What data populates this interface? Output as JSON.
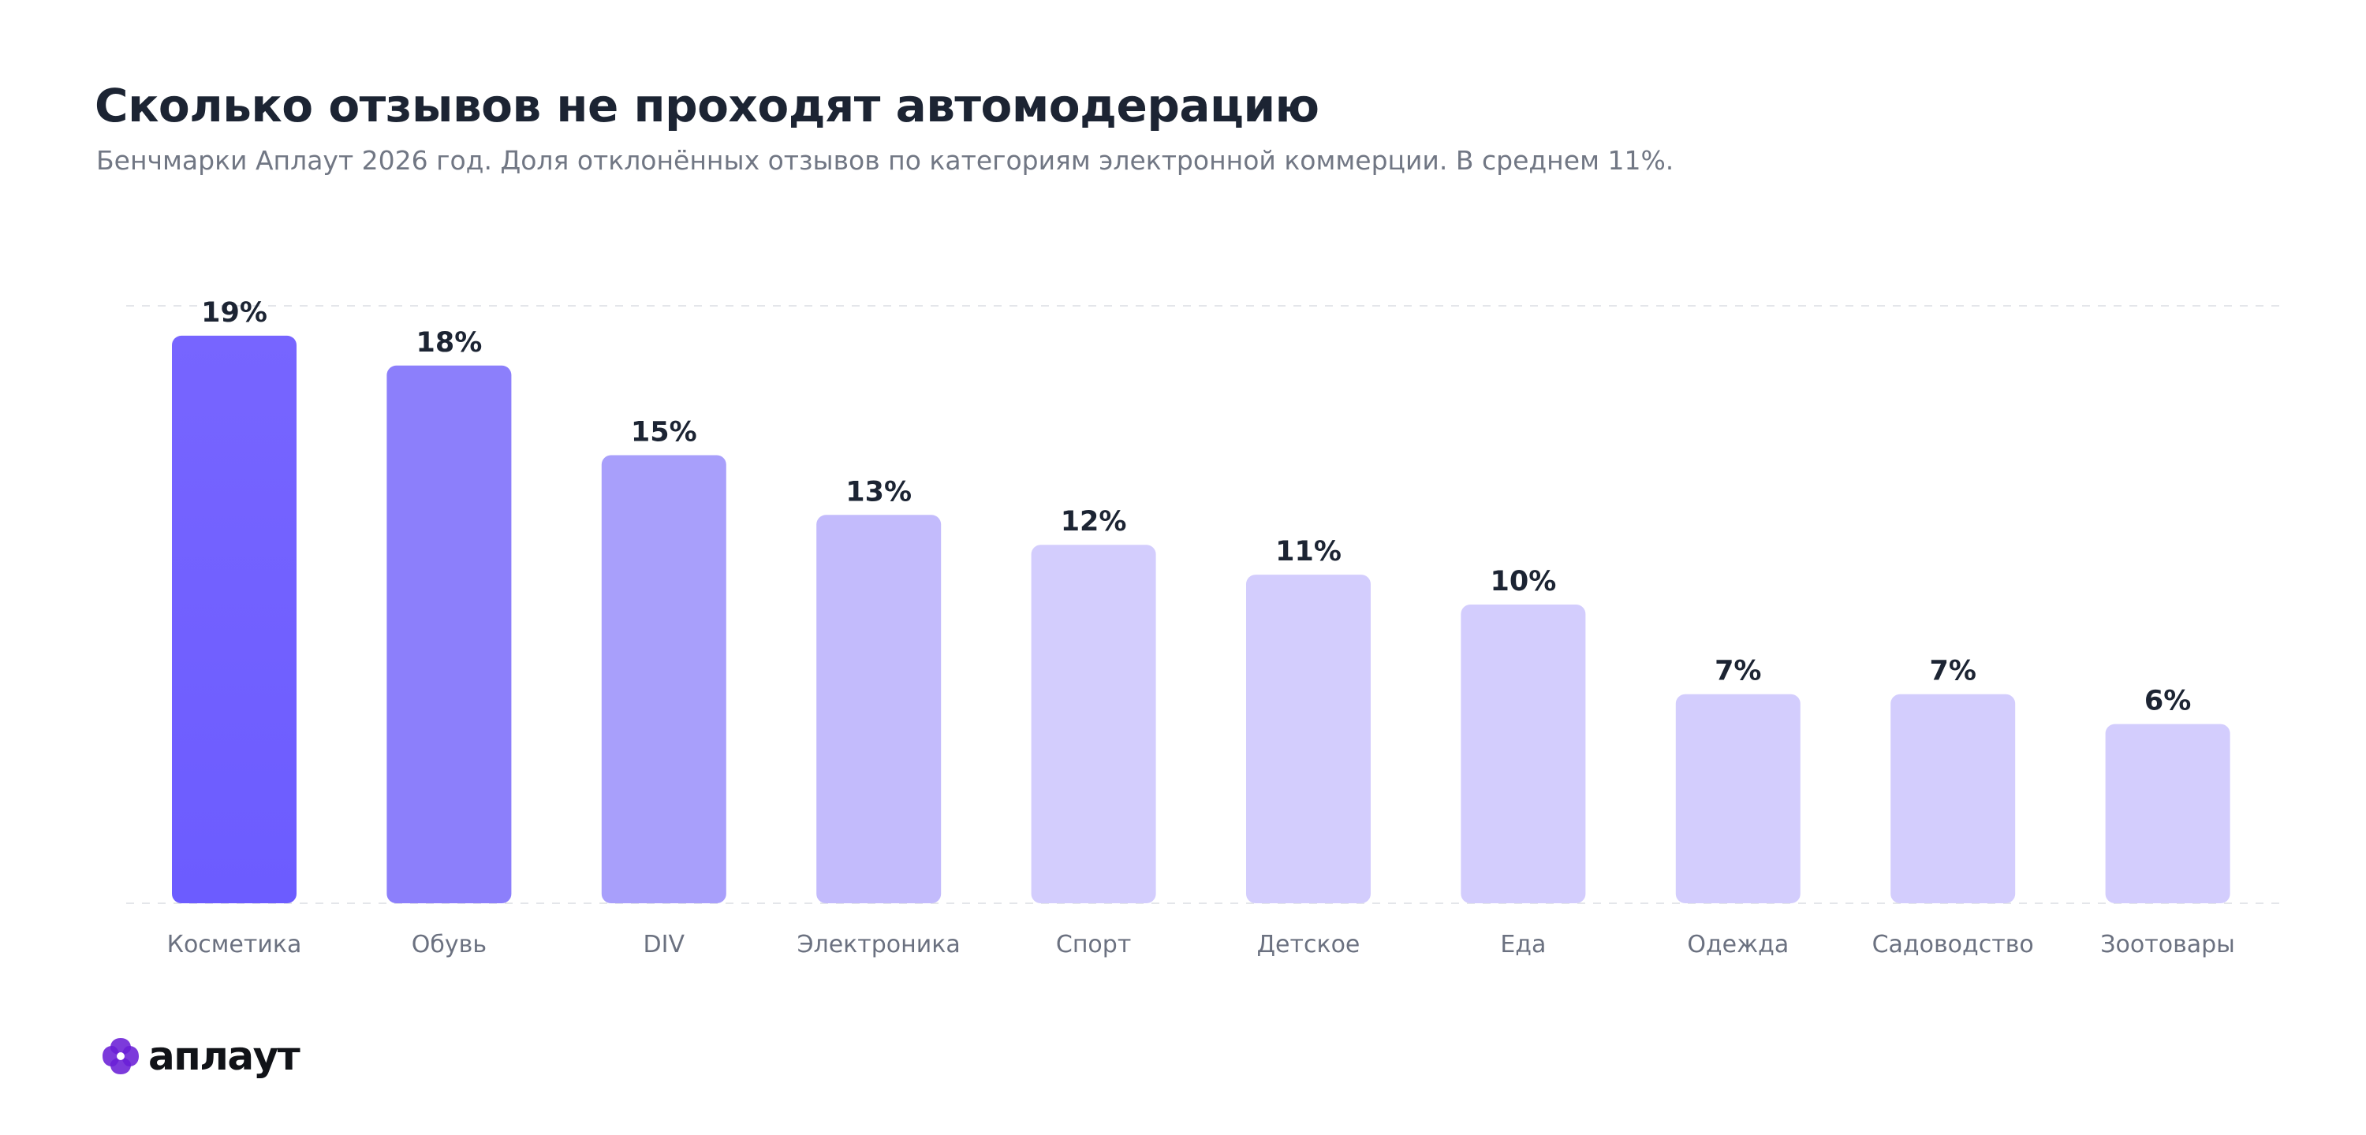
{
  "header": {
    "title": "Сколько отзывов не проходят автомодерацию",
    "subtitle": "Бенчмарки Аплаут 2026 год. Доля отклонённых отзывов по категориям электронной коммерции. В среднем 11%."
  },
  "chart_data": {
    "type": "bar",
    "categories": [
      "Косметика",
      "Обувь",
      "DIV",
      "Электроника",
      "Спорт",
      "Детское",
      "Еда",
      "Одежда",
      "Садоводство",
      "Зоотовары"
    ],
    "values": [
      19,
      18,
      15,
      13,
      12,
      11,
      10,
      7,
      7,
      6
    ],
    "value_labels": [
      "19%",
      "18%",
      "15%",
      "13%",
      "12%",
      "11%",
      "10%",
      "7%",
      "7%",
      "6%"
    ],
    "ylim": [
      0,
      20
    ],
    "gridlines": [
      0,
      20
    ],
    "grid": true,
    "legend": "none",
    "bar_colors": [
      "#6c5cff",
      "#8c7ffb",
      "#a89ffb",
      "#c3bbfc",
      "#d3cdfd",
      "#d3cdfd",
      "#d3cdfd",
      "#d3cdfd",
      "#d3cdfd",
      "#d3cdfd"
    ],
    "gradient_top_colors": [
      "#7765ff",
      "#8c7ffb",
      "#a89ffb",
      "#c3bbfc",
      "#d3cdfd",
      "#d3cdfd",
      "#d3cdfd",
      "#d3cdfd",
      "#d3cdfd",
      "#d3cdfd"
    ],
    "label_color": "#1c2433",
    "tick_color": "#6b7180",
    "grid_color": "#e4e6ea"
  },
  "logo": {
    "text": "аплаут",
    "icon": "aplaut-logo-icon",
    "color": "#6a1fd6"
  }
}
